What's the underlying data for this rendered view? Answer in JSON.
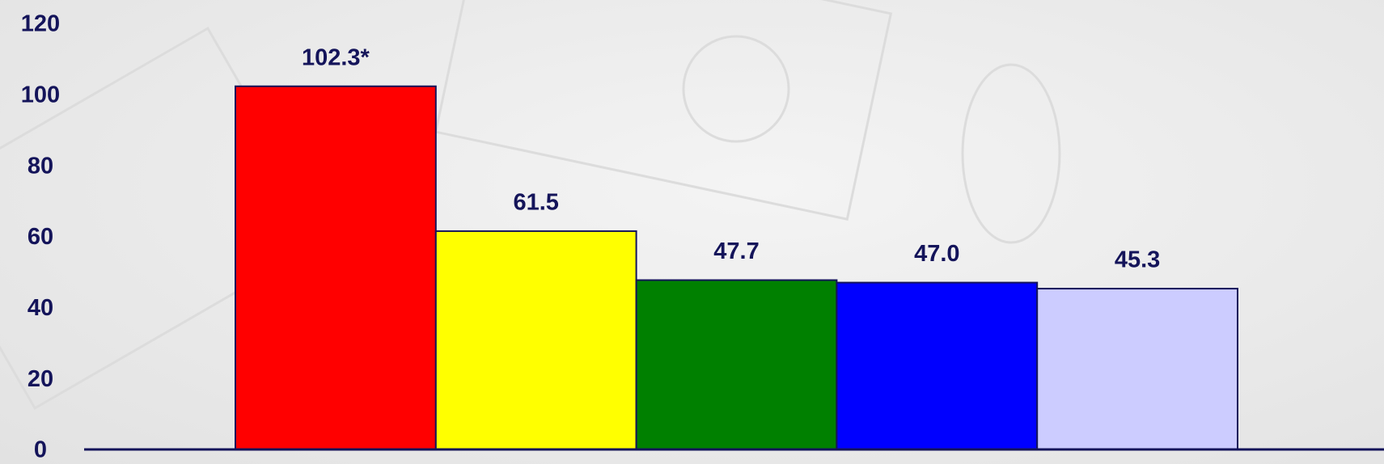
{
  "chart_data": {
    "type": "bar",
    "categories": [
      null,
      null,
      null,
      null,
      null
    ],
    "values": [
      102.3,
      61.5,
      47.7,
      47.0,
      45.3
    ],
    "value_labels": [
      "102.3*",
      "61.5",
      "47.7",
      "47.0",
      "45.3"
    ],
    "colors": [
      "#ff0000",
      "#ffff00",
      "#008000",
      "#0000ff",
      "#ccccff"
    ],
    "ylim": [
      0,
      120
    ],
    "yticks": [
      0,
      20,
      40,
      60,
      80,
      100,
      120
    ],
    "grid": false
  }
}
